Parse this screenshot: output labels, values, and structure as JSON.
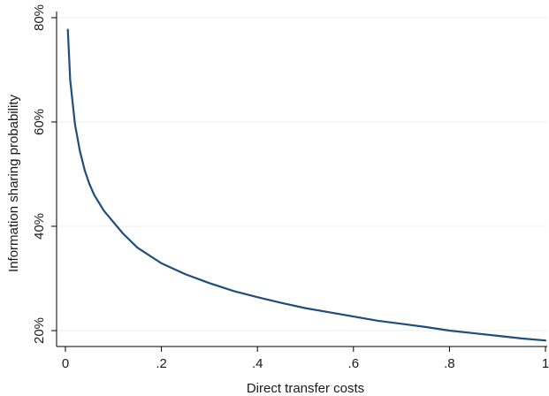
{
  "chart_data": {
    "type": "line",
    "title": "",
    "xlabel": "Direct transfer costs",
    "ylabel": "Information sharing probability",
    "xlim": [
      0,
      1
    ],
    "ylim": [
      0.17,
      0.82
    ],
    "x_ticks": [
      {
        "value": 0,
        "label": "0"
      },
      {
        "value": 0.2,
        "label": ".2"
      },
      {
        "value": 0.4,
        "label": ".4"
      },
      {
        "value": 0.6,
        "label": ".6"
      },
      {
        "value": 0.8,
        "label": ".8"
      },
      {
        "value": 1,
        "label": "1"
      }
    ],
    "y_ticks": [
      {
        "value": 0.2,
        "label": "20%"
      },
      {
        "value": 0.4,
        "label": "40%"
      },
      {
        "value": 0.6,
        "label": "60%"
      },
      {
        "value": 0.8,
        "label": "80%"
      }
    ],
    "grid": true,
    "legend": "none",
    "colors": {
      "line": "#1f4e79",
      "grid": "#e8edf0",
      "axis": "#000000"
    },
    "series": [
      {
        "x": [
          0.005,
          0.01,
          0.02,
          0.03,
          0.04,
          0.05,
          0.06,
          0.08,
          0.1,
          0.12,
          0.15,
          0.2,
          0.25,
          0.3,
          0.35,
          0.4,
          0.45,
          0.5,
          0.55,
          0.6,
          0.65,
          0.7,
          0.75,
          0.8,
          0.85,
          0.9,
          0.95,
          1.0
        ],
        "values": [
          0.777,
          0.68,
          0.595,
          0.545,
          0.508,
          0.481,
          0.46,
          0.43,
          0.408,
          0.386,
          0.359,
          0.329,
          0.308,
          0.291,
          0.276,
          0.264,
          0.253,
          0.243,
          0.235,
          0.227,
          0.219,
          0.213,
          0.207,
          0.2,
          0.195,
          0.19,
          0.185,
          0.181
        ]
      }
    ]
  }
}
